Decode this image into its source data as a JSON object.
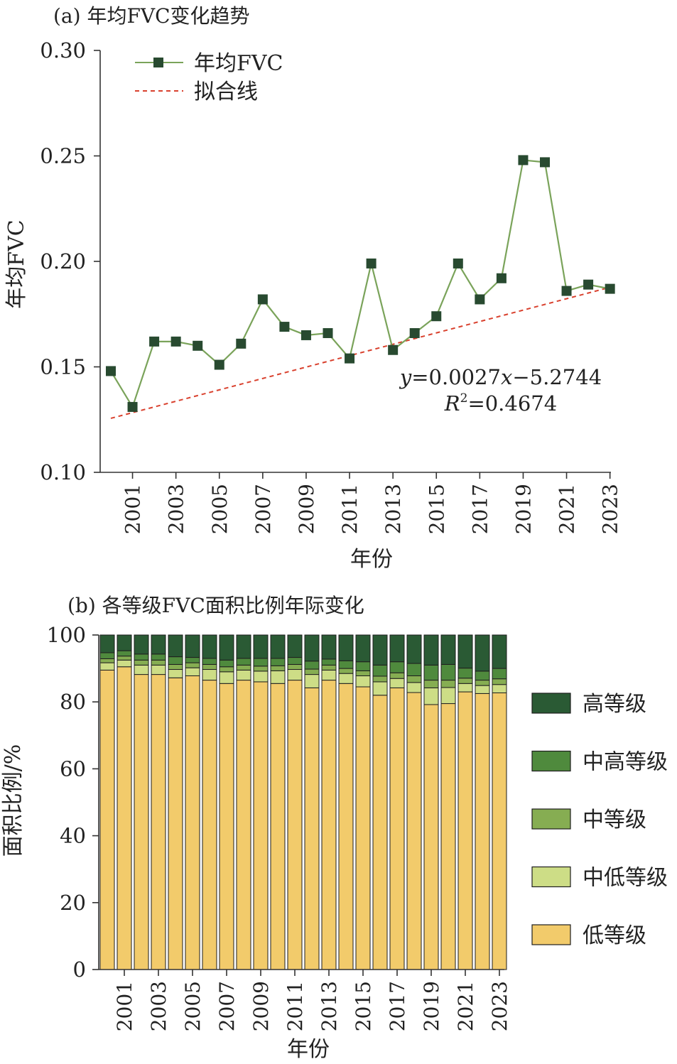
{
  "chart_data": [
    {
      "type": "line",
      "title": "(a) 年均FVC变化趋势",
      "xlabel": "年份",
      "ylabel": "年均FVC",
      "ylim": [
        0.1,
        0.3
      ],
      "yticks": [
        0.1,
        0.15,
        0.2,
        0.25,
        0.3
      ],
      "ytick_labels": [
        "0.10",
        "0.15",
        "0.20",
        "0.25",
        "0.30"
      ],
      "xlim": [
        2000,
        2023
      ],
      "xtick_labels": [
        "2001",
        "2003",
        "2005",
        "2007",
        "2009",
        "2011",
        "2013",
        "2015",
        "2017",
        "2019",
        "2021",
        "2023"
      ],
      "x": [
        2000,
        2001,
        2002,
        2003,
        2004,
        2005,
        2006,
        2007,
        2008,
        2009,
        2010,
        2011,
        2012,
        2013,
        2014,
        2015,
        2016,
        2017,
        2018,
        2019,
        2020,
        2021,
        2022,
        2023
      ],
      "series": [
        {
          "name": "年均FVC",
          "color": "#7aa35a",
          "marker_color": "#284a30",
          "values": [
            0.148,
            0.131,
            0.162,
            0.162,
            0.16,
            0.151,
            0.161,
            0.182,
            0.169,
            0.165,
            0.166,
            0.154,
            0.199,
            0.158,
            0.166,
            0.174,
            0.199,
            0.182,
            0.192,
            0.248,
            0.247,
            0.186,
            0.189,
            0.187
          ]
        }
      ],
      "fit": {
        "name": "拟合线",
        "color": "#d9412e",
        "slope": 0.0027,
        "intercept": -5.2744,
        "equation_prefix": "y",
        "equation_body": "=0.0027",
        "equation_var": "x",
        "equation_suffix": "−5.2744",
        "r2_letter": "R",
        "r2_exp": "2",
        "r2_value": "=0.4674"
      },
      "legend_position": "top-left"
    },
    {
      "type": "bar",
      "stacked": true,
      "title": "(b) 各等级FVC面积比例年际变化",
      "xlabel": "年份",
      "ylabel": "面积比例/%",
      "ylim": [
        0,
        100
      ],
      "yticks": [
        0,
        20,
        40,
        60,
        80,
        100
      ],
      "ytick_labels": [
        "0",
        "20",
        "40",
        "60",
        "80",
        "100"
      ],
      "categories": [
        2000,
        2001,
        2002,
        2003,
        2004,
        2005,
        2006,
        2007,
        2008,
        2009,
        2010,
        2011,
        2012,
        2013,
        2014,
        2015,
        2016,
        2017,
        2018,
        2019,
        2020,
        2021,
        2022,
        2023
      ],
      "xtick_labels": [
        "2001",
        "2003",
        "2005",
        "2007",
        "2009",
        "2011",
        "2013",
        "2015",
        "2017",
        "2019",
        "2021",
        "2023"
      ],
      "series": [
        {
          "name": "低等级",
          "color": "#f2cb6b",
          "values": [
            89.5,
            90.5,
            88.2,
            88.2,
            87.2,
            87.8,
            86.5,
            85.5,
            86.5,
            86.0,
            85.5,
            86.5,
            84.2,
            86.5,
            85.5,
            84.5,
            82.0,
            84.2,
            82.8,
            79.2,
            79.5,
            83.0,
            82.5,
            82.7
          ]
        },
        {
          "name": "中低等级",
          "color": "#cddd86",
          "values": [
            2.2,
            2.0,
            2.8,
            2.8,
            2.5,
            2.4,
            3.2,
            3.5,
            3.0,
            3.2,
            3.8,
            3.2,
            4.0,
            3.0,
            3.0,
            3.3,
            4.0,
            2.8,
            3.0,
            5.0,
            4.8,
            2.5,
            2.4,
            2.5
          ]
        },
        {
          "name": "中等级",
          "color": "#86ad52",
          "values": [
            1.2,
            1.2,
            1.5,
            1.5,
            1.5,
            1.5,
            1.5,
            1.5,
            1.5,
            1.5,
            1.5,
            1.5,
            1.6,
            1.5,
            1.5,
            1.5,
            1.7,
            1.7,
            2.0,
            2.3,
            2.2,
            1.6,
            1.6,
            1.7
          ]
        },
        {
          "name": "中高等级",
          "color": "#4f8a3d",
          "values": [
            1.8,
            1.6,
            1.8,
            1.8,
            2.3,
            1.6,
            1.8,
            2.0,
            2.0,
            2.3,
            2.2,
            2.1,
            2.4,
            1.8,
            2.3,
            2.7,
            3.3,
            3.3,
            3.7,
            4.5,
            4.7,
            3.0,
            2.7,
            3.1
          ]
        },
        {
          "name": "高等级",
          "color": "#2a5a34",
          "values": [
            5.3,
            4.7,
            5.7,
            5.7,
            6.5,
            6.7,
            7.0,
            7.5,
            7.0,
            7.0,
            7.0,
            6.7,
            7.8,
            7.2,
            7.7,
            8.0,
            9.0,
            8.0,
            8.5,
            9.0,
            8.8,
            9.9,
            10.8,
            10.0
          ]
        }
      ],
      "legend_order": [
        "高等级",
        "中高等级",
        "中等级",
        "中低等级",
        "低等级"
      ],
      "legend_position": "right"
    }
  ]
}
